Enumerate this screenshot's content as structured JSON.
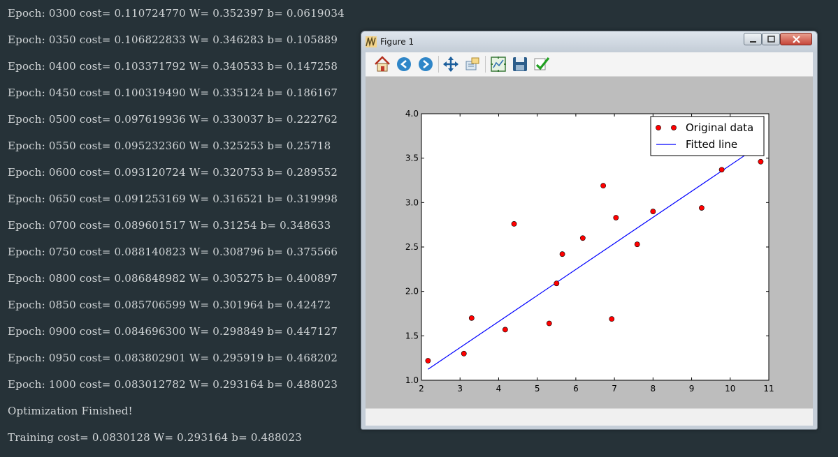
{
  "terminal": {
    "lines": [
      "Epoch: 0300 cost= 0.110724770 W= 0.352397 b= 0.0619034",
      "Epoch: 0350 cost= 0.106822833 W= 0.346283 b= 0.105889",
      "Epoch: 0400 cost= 0.103371792 W= 0.340533 b= 0.147258",
      "Epoch: 0450 cost= 0.100319490 W= 0.335124 b= 0.186167",
      "Epoch: 0500 cost= 0.097619936 W= 0.330037 b= 0.222762",
      "Epoch: 0550 cost= 0.095232360 W= 0.325253 b= 0.25718",
      "Epoch: 0600 cost= 0.093120724 W= 0.320753 b= 0.289552",
      "Epoch: 0650 cost= 0.091253169 W= 0.316521 b= 0.319998",
      "Epoch: 0700 cost= 0.089601517 W= 0.31254 b= 0.348633",
      "Epoch: 0750 cost= 0.088140823 W= 0.308796 b= 0.375566",
      "Epoch: 0800 cost= 0.086848982 W= 0.305275 b= 0.400897",
      "Epoch: 0850 cost= 0.085706599 W= 0.301964 b= 0.42472",
      "Epoch: 0900 cost= 0.084696300 W= 0.298849 b= 0.447127",
      "Epoch: 0950 cost= 0.083802901 W= 0.295919 b= 0.468202",
      "Epoch: 1000 cost= 0.083012782 W= 0.293164 b= 0.488023",
      "Optimization Finished!",
      "Training cost= 0.0830128 W= 0.293164 b= 0.488023"
    ]
  },
  "window": {
    "title": "Figure 1",
    "toolbar": [
      {
        "name": "home-icon"
      },
      {
        "name": "back-arrow-icon"
      },
      {
        "name": "forward-arrow-icon"
      },
      {
        "name": "pan-icon"
      },
      {
        "name": "zoom-icon"
      },
      {
        "name": "configure-subplots-icon"
      },
      {
        "name": "save-icon"
      },
      {
        "name": "edit-parameters-icon"
      }
    ]
  },
  "chart_data": {
    "type": "scatter",
    "xlim": [
      2,
      11
    ],
    "ylim": [
      1.0,
      4.0
    ],
    "x_ticks": [
      "2",
      "3",
      "4",
      "5",
      "6",
      "7",
      "8",
      "9",
      "10",
      "11"
    ],
    "y_ticks": [
      "1.0",
      "1.5",
      "2.0",
      "2.5",
      "3.0",
      "3.5",
      "4.0"
    ],
    "grid": false,
    "legend_position": "top-right",
    "series": [
      {
        "name": "Original data",
        "kind": "scatter",
        "color": "#ff0000",
        "points": [
          [
            2.17,
            1.22
          ],
          [
            3.1,
            1.3
          ],
          [
            3.3,
            1.7
          ],
          [
            4.17,
            1.57
          ],
          [
            4.4,
            2.76
          ],
          [
            5.31,
            1.64
          ],
          [
            5.5,
            2.09
          ],
          [
            5.65,
            2.42
          ],
          [
            6.18,
            2.6
          ],
          [
            6.71,
            3.19
          ],
          [
            6.93,
            1.69
          ],
          [
            7.04,
            2.83
          ],
          [
            7.59,
            2.53
          ],
          [
            8.0,
            2.9
          ],
          [
            9.26,
            2.94
          ],
          [
            9.78,
            3.37
          ],
          [
            10.79,
            3.46
          ]
        ]
      },
      {
        "name": "Fitted line",
        "kind": "line",
        "color": "#0000ff",
        "points": [
          [
            2.17,
            1.124
          ],
          [
            10.79,
            3.652
          ]
        ]
      }
    ]
  }
}
